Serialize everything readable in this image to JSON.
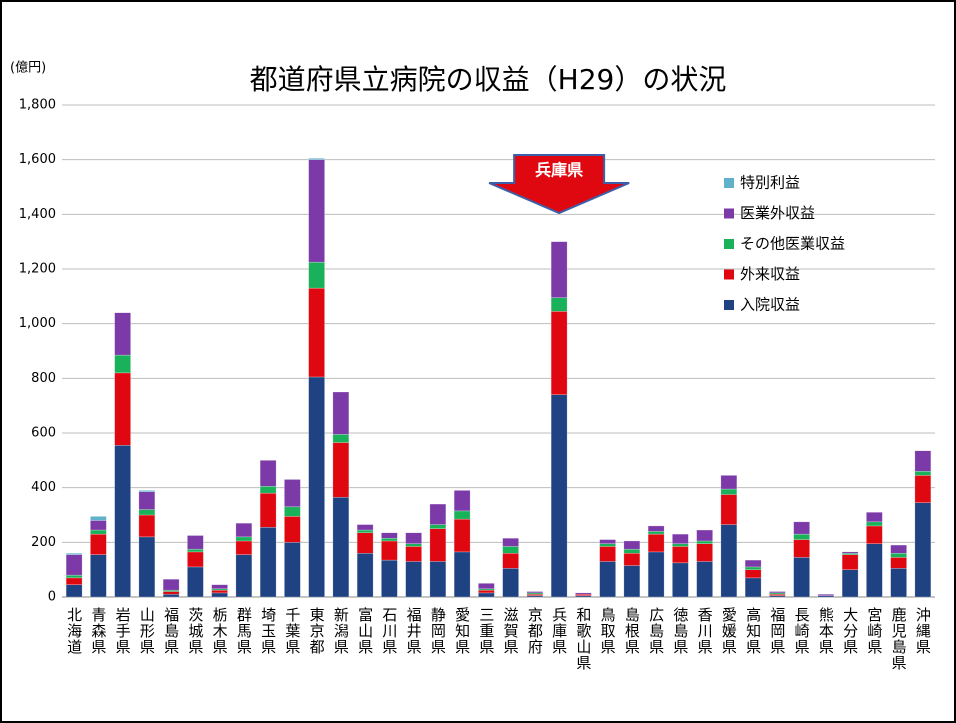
{
  "chart_data": {
    "type": "stacked_bar",
    "title": "都道府県立病院の収益（H29）の状況",
    "y_label": "(億円)",
    "annotation": "兵庫県",
    "categories": [
      "北海道",
      "青森県",
      "岩手県",
      "山形県",
      "福島県",
      "茨城県",
      "栃木県",
      "群馬県",
      "埼玉県",
      "千葉県",
      "東京都",
      "新潟県",
      "富山県",
      "石川県",
      "福井県",
      "静岡県",
      "愛知県",
      "三重県",
      "滋賀県",
      "京都府",
      "兵庫県",
      "和歌山県",
      "鳥取県",
      "島根県",
      "広島県",
      "徳島県",
      "香川県",
      "愛媛県",
      "高知県",
      "福岡県",
      "長崎県",
      "熊本県",
      "大分県",
      "宮崎県",
      "鹿児島県",
      "沖縄県"
    ],
    "series": [
      {
        "name": "入院収益",
        "color": "#1f4283",
        "values": [
          45,
          155,
          555,
          220,
          10,
          110,
          15,
          155,
          255,
          200,
          805,
          365,
          160,
          135,
          130,
          130,
          165,
          15,
          105,
          5,
          740,
          5,
          130,
          115,
          165,
          125,
          130,
          265,
          70,
          5,
          145,
          5,
          100,
          195,
          105,
          345
        ]
      },
      {
        "name": "外来収益",
        "color": "#e00810",
        "values": [
          25,
          75,
          265,
          80,
          10,
          55,
          10,
          50,
          125,
          95,
          325,
          200,
          75,
          70,
          55,
          120,
          120,
          10,
          55,
          5,
          305,
          5,
          55,
          45,
          65,
          60,
          65,
          110,
          30,
          5,
          65,
          0,
          55,
          65,
          40,
          100
        ]
      },
      {
        "name": "その他医業収益",
        "color": "#19b15a",
        "values": [
          10,
          15,
          65,
          20,
          5,
          10,
          5,
          15,
          25,
          35,
          95,
          30,
          10,
          10,
          10,
          15,
          30,
          5,
          25,
          5,
          50,
          0,
          10,
          15,
          10,
          10,
          10,
          20,
          10,
          5,
          20,
          0,
          5,
          15,
          15,
          15
        ]
      },
      {
        "name": "医業外収益",
        "color": "#7b3aa8",
        "values": [
          75,
          35,
          155,
          65,
          40,
          50,
          15,
          50,
          95,
          100,
          375,
          155,
          20,
          20,
          40,
          75,
          75,
          20,
          30,
          5,
          205,
          5,
          15,
          30,
          20,
          35,
          40,
          50,
          25,
          5,
          45,
          5,
          5,
          35,
          30,
          75
        ]
      },
      {
        "name": "特別利益",
        "color": "#5fb2c9",
        "values": [
          5,
          15,
          0,
          5,
          0,
          0,
          0,
          0,
          0,
          0,
          5,
          0,
          0,
          0,
          0,
          0,
          0,
          0,
          0,
          0,
          0,
          0,
          0,
          0,
          0,
          0,
          0,
          0,
          0,
          0,
          0,
          0,
          0,
          0,
          0,
          0
        ]
      }
    ],
    "ylim": [
      0,
      1800
    ],
    "yticks": [
      0,
      {
        "value": 200,
        "label": "200"
      },
      400,
      600,
      800,
      {
        "value": 1000,
        "label": "1,000"
      },
      {
        "value": 1200,
        "label": "1,200"
      },
      {
        "value": 1400,
        "label": "1,400"
      },
      {
        "value": 1600,
        "label": "1,600"
      },
      {
        "value": 1800,
        "label": "1,800"
      }
    ],
    "grid": true
  }
}
